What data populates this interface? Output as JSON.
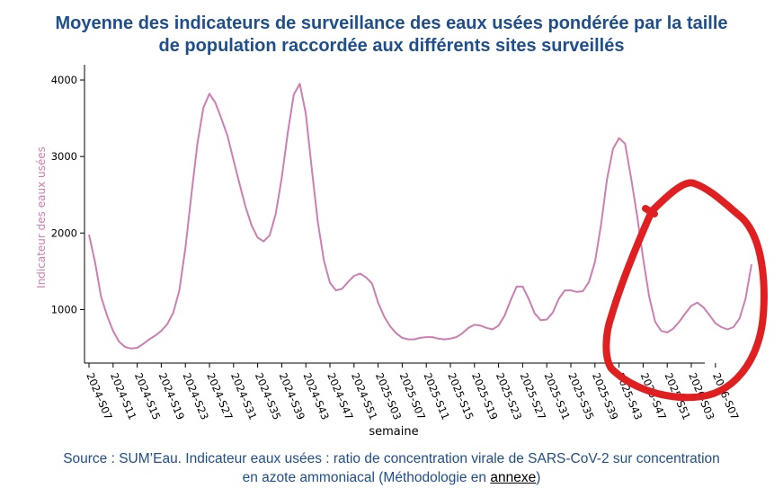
{
  "title": {
    "line1": "Moyenne des indicateurs de surveillance des eaux usées pondérée par la taille",
    "line2": "de population raccordée aux différents sites surveillés"
  },
  "source": {
    "text": "Source : SUM’Eau. Indicateur eaux usées : ratio de concentration virale de SARS-CoV-2 sur concentration",
    "text2": "en azote ammoniacal (Méthodologie en ",
    "link": "annexe",
    "text_end": ")"
  },
  "colors": {
    "title": "#1f4e8c",
    "series": "#cc7fb0",
    "annotation": "#e02020"
  },
  "chart_data": {
    "type": "line",
    "title": "",
    "xlabel": "semaine",
    "ylabel": "Indicateur des eaux usées",
    "ylim": [
      300,
      4200
    ],
    "yticks": [
      1000,
      2000,
      3000,
      4000
    ],
    "xtick_labels": [
      "2024-S07",
      "2024-S11",
      "2024-S15",
      "2024-S19",
      "2024-S23",
      "2024-S27",
      "2024-S31",
      "2024-S35",
      "2024-S39",
      "2024-S43",
      "2024-S47",
      "2024-S51",
      "2025-S03",
      "2025-S07",
      "2025-S11",
      "2025-S15",
      "2025-S19",
      "2025-S23",
      "2025-S27",
      "2025-S31",
      "2025-S35",
      "2025-S39",
      "2025-S43",
      "2025-S47",
      "2025-S51",
      "2026-S03",
      "2026-S07"
    ],
    "series": [
      {
        "name": "Indicateur des eaux usées",
        "start_week": "2024-S07",
        "values": [
          1980,
          1620,
          1170,
          920,
          720,
          580,
          510,
          490,
          500,
          550,
          610,
          660,
          720,
          810,
          960,
          1250,
          1800,
          2500,
          3170,
          3640,
          3820,
          3700,
          3490,
          3270,
          2950,
          2640,
          2340,
          2100,
          1940,
          1890,
          1970,
          2250,
          2720,
          3310,
          3810,
          3950,
          3560,
          2830,
          2140,
          1640,
          1350,
          1250,
          1270,
          1360,
          1440,
          1470,
          1420,
          1340,
          1090,
          910,
          780,
          690,
          630,
          610,
          610,
          630,
          640,
          640,
          620,
          610,
          620,
          640,
          690,
          760,
          800,
          790,
          760,
          740,
          790,
          920,
          1120,
          1300,
          1300,
          1140,
          950,
          860,
          870,
          960,
          1140,
          1250,
          1250,
          1230,
          1240,
          1360,
          1620,
          2100,
          2700,
          3100,
          3240,
          3170,
          2720,
          2230,
          1670,
          1170,
          840,
          720,
          700,
          750,
          840,
          950,
          1050,
          1090,
          1030,
          930,
          820,
          770,
          740,
          770,
          880,
          1140,
          1590
        ]
      }
    ],
    "annotation": "hand-drawn red circle around the most recent weeks"
  }
}
